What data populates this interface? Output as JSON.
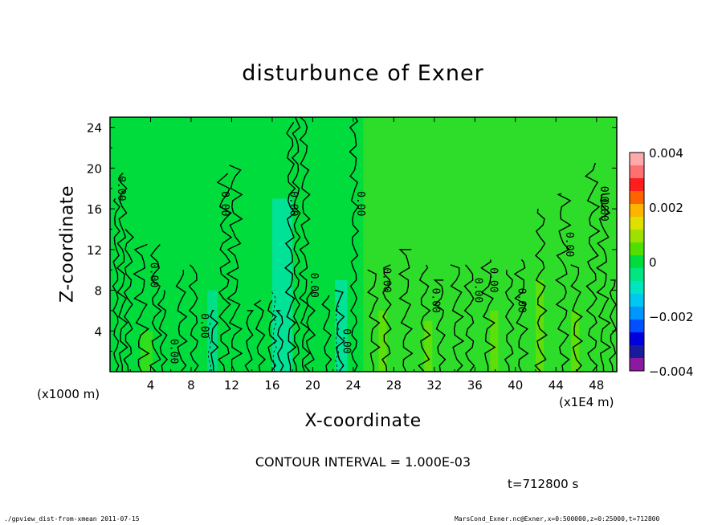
{
  "chart_data": {
    "type": "heatmap",
    "title": "disturbunce of Exner",
    "xlabel": "X-coordinate",
    "ylabel": "Z-coordinate",
    "x_scale_note": "(x1000 m)",
    "x_factor_note": "(x1E4 m)",
    "xlim": [
      0,
      50
    ],
    "ylim": [
      0,
      25
    ],
    "x_ticks": [
      "4",
      "8",
      "12",
      "16",
      "20",
      "24",
      "28",
      "32",
      "36",
      "40",
      "44",
      "48"
    ],
    "y_ticks": [
      "4",
      "8",
      "12",
      "16",
      "20",
      "24"
    ],
    "colorbar": {
      "levels": [
        -0.004,
        -0.0035,
        -0.003,
        -0.0025,
        -0.002,
        -0.0015,
        -0.001,
        -0.0005,
        0,
        0.0005,
        0.001,
        0.0015,
        0.002,
        0.0025,
        0.003,
        0.0035,
        0.004
      ],
      "colors": [
        "#8c1aa0",
        "#1a1a9c",
        "#0000dd",
        "#0050ff",
        "#0096ff",
        "#00c8f0",
        "#00e6c0",
        "#00e680",
        "#00dc3c",
        "#50e000",
        "#9ee000",
        "#e0e000",
        "#ffb400",
        "#ff6400",
        "#ff1e1e",
        "#ff7070",
        "#ffaaaa"
      ],
      "tick_labels": [
        "0.004",
        "0.002",
        "0",
        "−0.002",
        "−0.004"
      ]
    },
    "contour_labels": [
      "0.00",
      "0.00",
      "0.00",
      "0.00",
      "0.00",
      "0.00",
      "0.00",
      "0.00",
      "0.00",
      "0.00",
      "0.00",
      "0.00",
      "0.00",
      "0.00",
      "0.00",
      "0.00",
      "0.00"
    ],
    "contour_interval": "CONTOUR INTERVAL = 1.000E-03",
    "time": "t=712800 s"
  },
  "footer": {
    "left": "./gpview_dist-from-xmean  2011-07-15",
    "right": "MarsCond_Exner.nc@Exner,x=0:500000,z=0:25000,t=712800"
  }
}
